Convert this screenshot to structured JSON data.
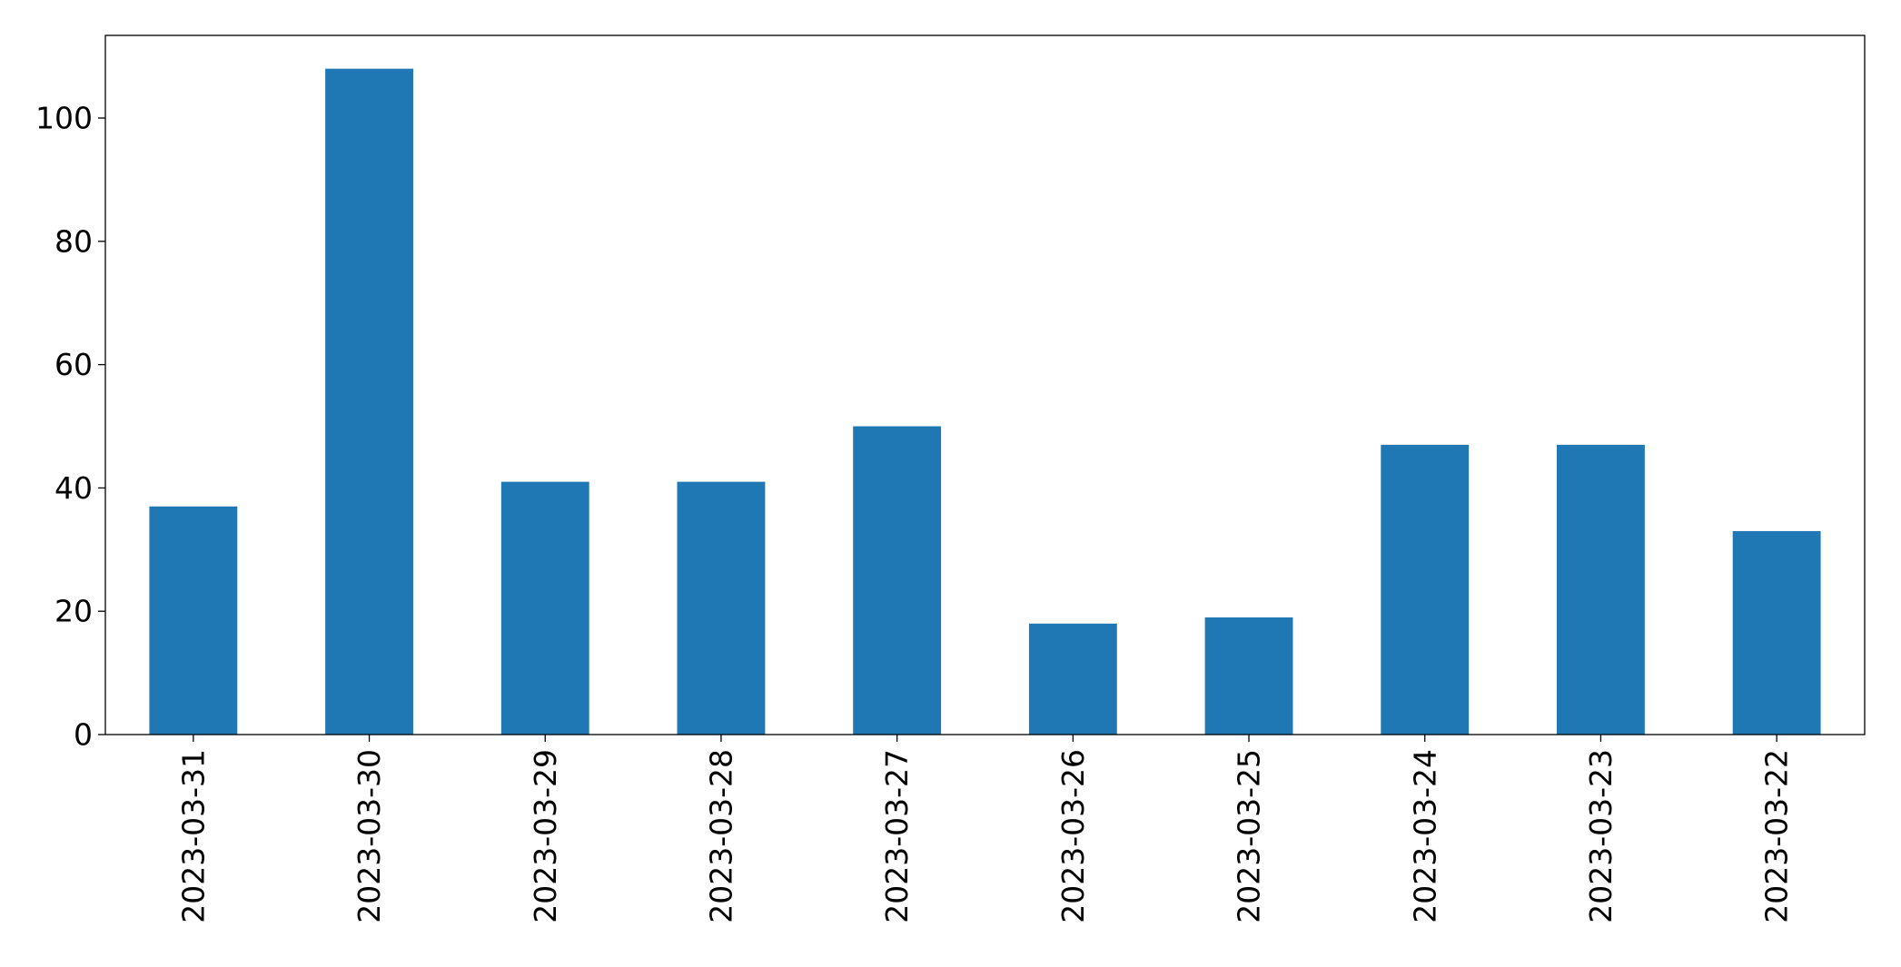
{
  "chart_data": {
    "type": "bar",
    "categories": [
      "2023-03-31",
      "2023-03-30",
      "2023-03-29",
      "2023-03-28",
      "2023-03-27",
      "2023-03-26",
      "2023-03-25",
      "2023-03-24",
      "2023-03-23",
      "2023-03-22"
    ],
    "values": [
      37,
      108,
      41,
      41,
      50,
      18,
      19,
      47,
      47,
      33
    ],
    "color": "#1f77b4",
    "ylim": [
      0,
      113.4
    ],
    "yticks": [
      0,
      20,
      40,
      60,
      80,
      100
    ],
    "grid": false
  }
}
